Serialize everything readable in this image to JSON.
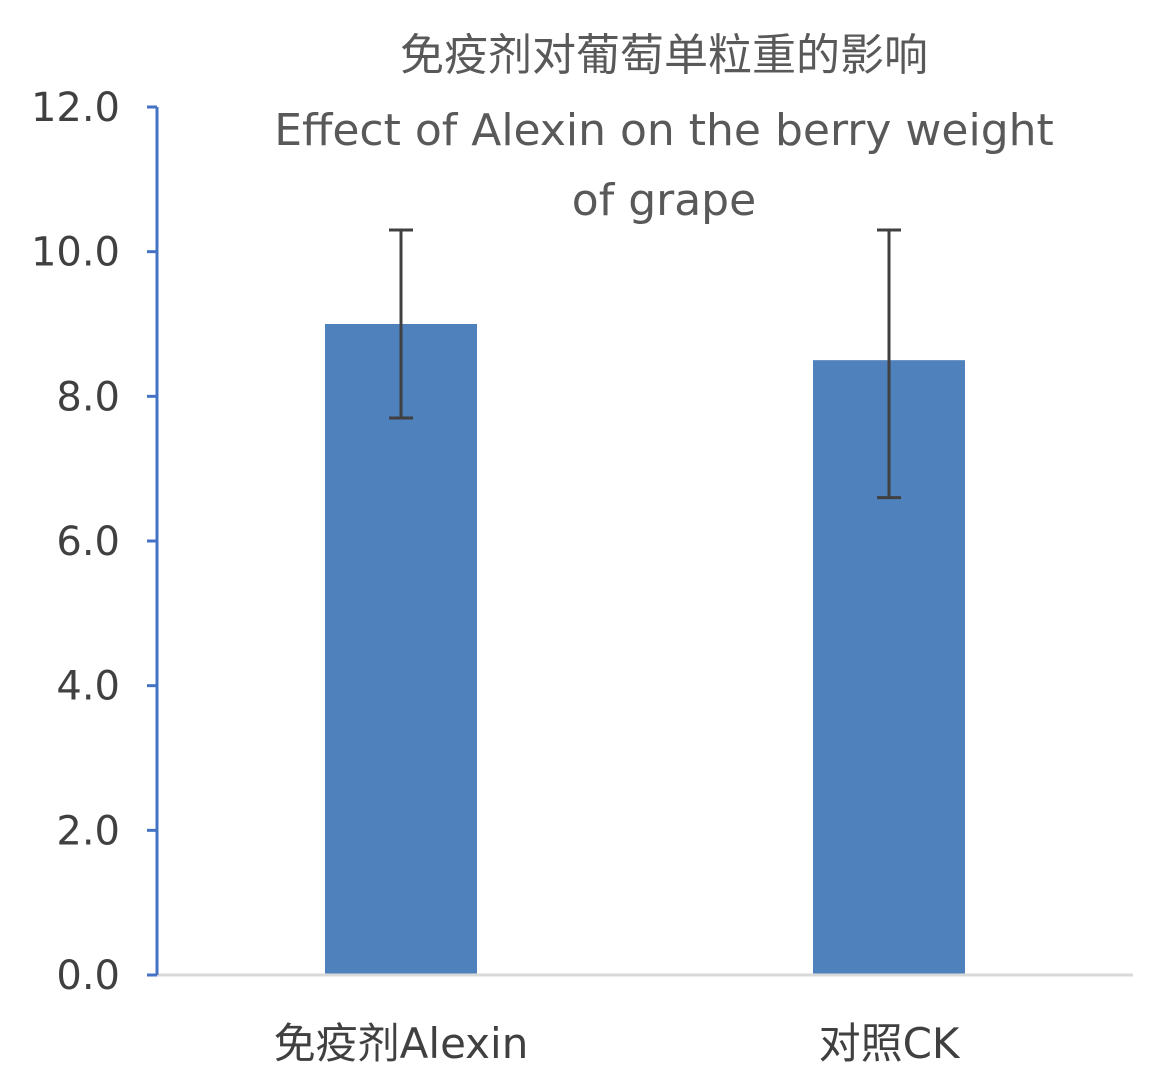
{
  "chart_data": {
    "type": "bar",
    "title_lines": [
      "免疫剂对葡萄单粒重的影响",
      "Effect of Alexin on the berry weight",
      "of grape"
    ],
    "categories": [
      "免疫剂Alexin",
      "对照CK"
    ],
    "series": [
      {
        "values": [
          9.0,
          8.5
        ],
        "error_low": [
          7.7,
          6.6
        ],
        "error_high": [
          10.3,
          10.3
        ]
      }
    ],
    "ylim": [
      0,
      12
    ],
    "yticks": [
      "0.0",
      "2.0",
      "4.0",
      "6.0",
      "8.0",
      "10.0",
      "12.0"
    ],
    "xlabel": "",
    "ylabel": "",
    "grid": false,
    "legend": "none",
    "colors": {
      "bar": "#4f81bd",
      "error_bar": "#404040",
      "y_axis": "#4472c4",
      "x_axis": "#d9d9d9",
      "title": "#595959",
      "tick_label": "#404040"
    }
  }
}
